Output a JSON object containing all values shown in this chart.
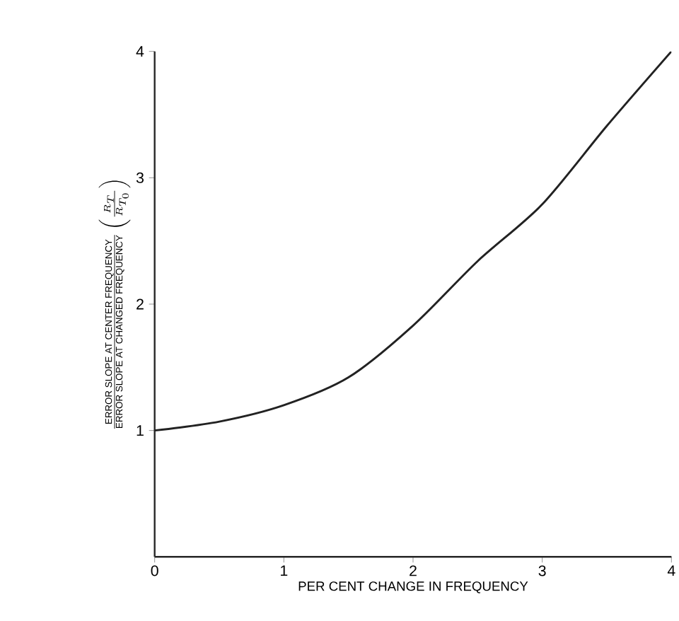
{
  "chart_data": {
    "type": "line",
    "xlabel": "PER CENT CHANGE IN FREQUENCY",
    "ylabel": "\\frac{\\text{ERROR SLOPE AT CENTER FREQUENCY}}{\\text{ERROR SLOPE AT CHANGED FREQUENCY}}\\left(\\frac{R_T}{R_{T_0}}\\right)",
    "x": [
      0,
      0.5,
      1,
      1.5,
      2,
      2.5,
      3,
      3.5,
      4
    ],
    "series": [
      {
        "color": "#222222",
        "values": [
          1.0,
          1.07,
          1.2,
          1.42,
          1.83,
          2.34,
          2.79,
          3.41,
          4.0
        ]
      }
    ],
    "xlim": [
      0,
      4
    ],
    "ylim": [
      0,
      4
    ],
    "xticks": [
      0,
      1,
      2,
      3,
      4
    ],
    "yticks": [
      1,
      2,
      3,
      4
    ],
    "grid": false,
    "marker": "none",
    "line_style": "solid"
  }
}
